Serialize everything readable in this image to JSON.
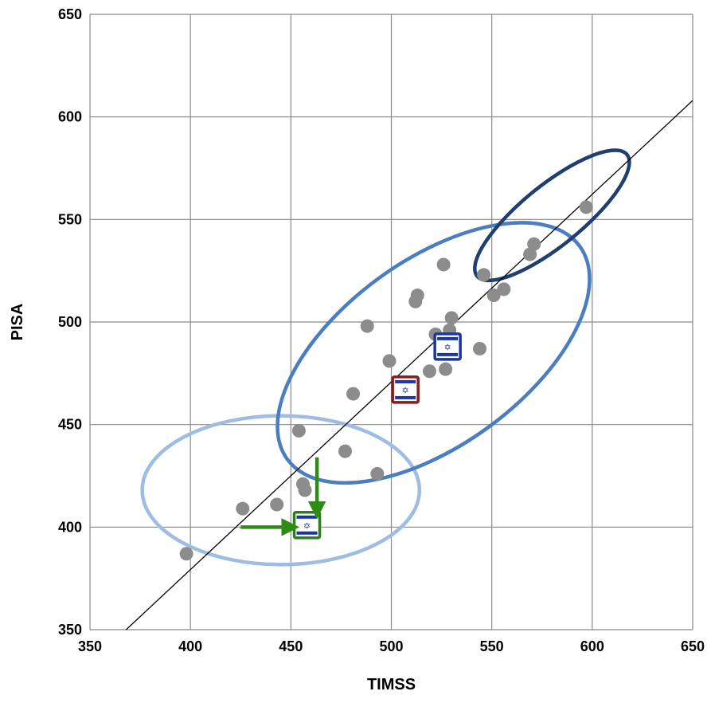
{
  "chart_data": {
    "type": "scatter",
    "xlabel": "TIMSS",
    "ylabel": "PISA",
    "xlim": [
      350,
      650
    ],
    "ylim": [
      350,
      650
    ],
    "x_ticks": [
      350,
      400,
      450,
      500,
      550,
      600,
      650
    ],
    "y_ticks": [
      350,
      400,
      450,
      500,
      550,
      600,
      650
    ],
    "x_tick_labels": [
      "350",
      "400",
      "450",
      "500",
      "550",
      "600",
      "650"
    ],
    "y_tick_labels": [
      "350",
      "400",
      "450",
      "500",
      "550",
      "600",
      "650"
    ],
    "grid": true,
    "series": [
      {
        "color": "#8c8c8c",
        "points": [
          [
            398,
            387
          ],
          [
            426,
            409
          ],
          [
            443,
            411
          ],
          [
            454,
            447
          ],
          [
            456,
            421
          ],
          [
            457,
            418
          ],
          [
            477,
            437
          ],
          [
            481,
            465
          ],
          [
            488,
            498
          ],
          [
            493,
            426
          ],
          [
            499,
            481
          ],
          [
            512,
            510
          ],
          [
            513,
            513
          ],
          [
            519,
            476
          ],
          [
            522,
            494
          ],
          [
            526,
            528
          ],
          [
            527,
            477
          ],
          [
            529,
            496
          ],
          [
            530,
            502
          ],
          [
            544,
            487
          ],
          [
            546,
            523
          ],
          [
            551,
            513
          ],
          [
            556,
            516
          ],
          [
            569,
            533
          ],
          [
            571,
            538
          ],
          [
            597,
            556
          ]
        ]
      }
    ],
    "trend_line": {
      "x": [
        368,
        650
      ],
      "y": [
        350,
        608
      ],
      "color": "#000000"
    },
    "flag_markers": [
      {
        "x": 528,
        "y": 488,
        "border_color": "#1a35a8",
        "icon": "israel-flag-icon",
        "glyph": "✡"
      },
      {
        "x": 507,
        "y": 467,
        "border_color": "#8b1a1a",
        "icon": "israel-flag-icon",
        "glyph": "✡"
      },
      {
        "x": 458,
        "y": 401,
        "border_color": "#2e7d1e",
        "icon": "israel-flag-icon",
        "glyph": "✡"
      }
    ],
    "clusters": [
      {
        "cx": 445,
        "cy": 418,
        "rx": 69,
        "ry": 37,
        "rotation": 0,
        "color": "#9fbde3"
      },
      {
        "cx": 521,
        "cy": 485,
        "rx": 90,
        "ry": 46,
        "rotation": -36,
        "color": "#4a7ec0"
      },
      {
        "cx": 580,
        "cy": 552,
        "rx": 48,
        "ry": 15,
        "rotation": -39,
        "color": "#1f3f6e"
      }
    ],
    "arrows": [
      {
        "from": [
          425,
          400
        ],
        "to": [
          451,
          400
        ],
        "color": "#2e8b14"
      },
      {
        "from": [
          463,
          434
        ],
        "to": [
          463,
          407
        ],
        "color": "#2e8b14"
      }
    ],
    "highlight_color": "#f6a24b"
  }
}
